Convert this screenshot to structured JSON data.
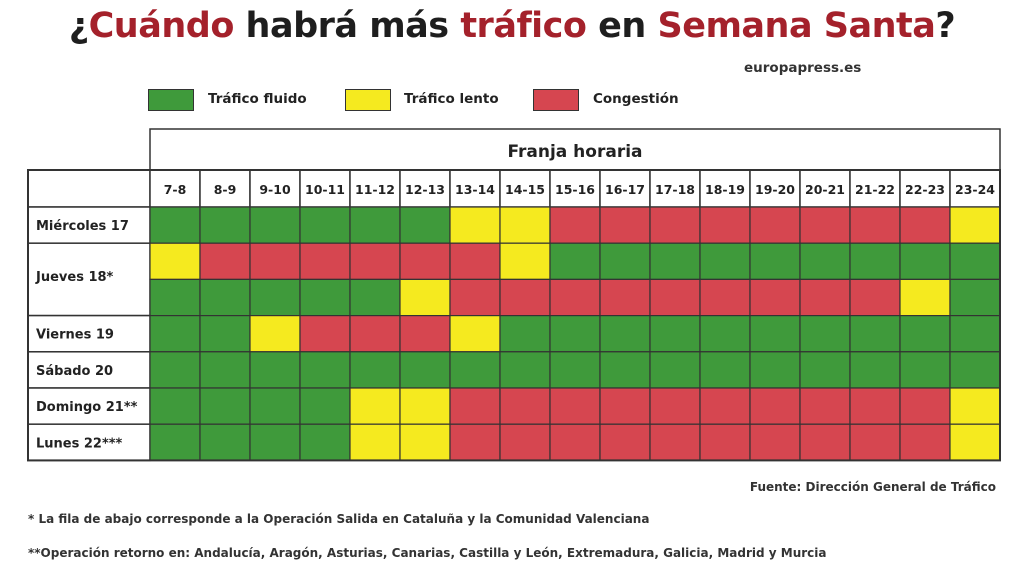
{
  "title": {
    "parts": [
      {
        "text": "¿",
        "red": false
      },
      {
        "text": "Cuándo",
        "red": true
      },
      {
        "text": " habrá más ",
        "red": false
      },
      {
        "text": "tráfico",
        "red": true
      },
      {
        "text": " en ",
        "red": false
      },
      {
        "text": "Semana Santa",
        "red": true
      },
      {
        "text": "?",
        "red": false
      }
    ]
  },
  "brand": "europapress.es",
  "colors": {
    "green": "#3f9a3b",
    "yellow": "#f5ea1f",
    "red": "#d64650",
    "title_red": "#a4212b"
  },
  "legend": [
    {
      "key": "G",
      "label": "Tráfico fluido"
    },
    {
      "key": "Y",
      "label": "Tráfico lento"
    },
    {
      "key": "R",
      "label": "Congestión"
    }
  ],
  "chart_data": {
    "type": "heatmap",
    "header": "Franja horaria",
    "columns": [
      "7-8",
      "8-9",
      "9-10",
      "10-11",
      "11-12",
      "12-13",
      "13-14",
      "14-15",
      "15-16",
      "16-17",
      "17-18",
      "18-19",
      "19-20",
      "20-21",
      "21-22",
      "22-23",
      "23-24"
    ],
    "days": [
      {
        "label": "Miércoles 17",
        "rows": [
          "GGGGGGYYRRRRRRRRY"
        ]
      },
      {
        "label": "Jueves 18*",
        "rows": [
          "YRRRRRRYGGGGGGGGG",
          "GGGGGYRRRRRRRRRYG"
        ]
      },
      {
        "label": "Viernes 19",
        "rows": [
          "GGYRRRYGGGGGGGGGG"
        ]
      },
      {
        "label": "Sábado 20",
        "rows": [
          "GGGGGGGGGGGGGGGGG"
        ]
      },
      {
        "label": "Domingo 21**",
        "rows": [
          "GGGGYYRRRRRRRRRRY"
        ]
      },
      {
        "label": "Lunes 22***",
        "rows": [
          "GGGGYYRRRRRRRRRRY"
        ]
      }
    ]
  },
  "source": "Fuente: Dirección General de Tráfico",
  "notes": [
    "* La fila de abajo corresponde a la Operación Salida en Cataluña y la Comunidad Valenciana",
    "**Operación retorno en: Andalucía, Aragón, Asturias, Canarias, Castilla y León, Extremadura, Galicia, Madrid y Murcia"
  ]
}
